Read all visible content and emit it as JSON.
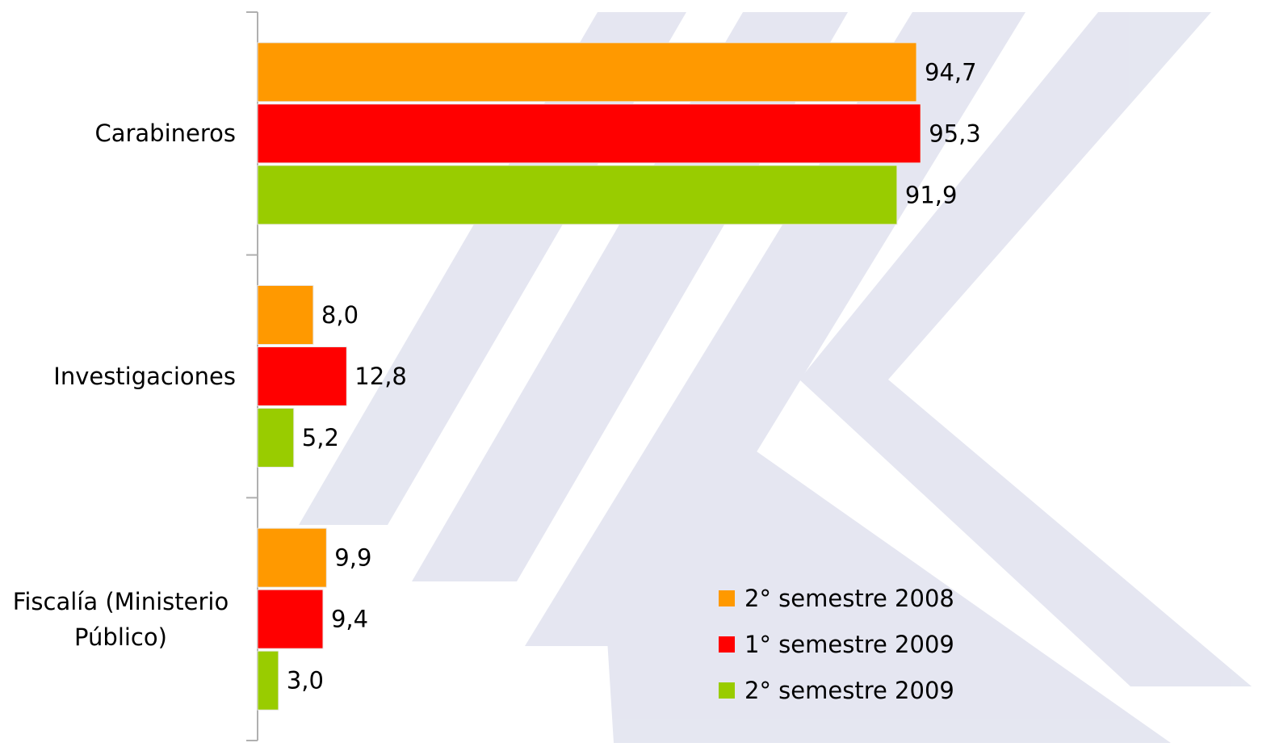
{
  "chart_data": {
    "type": "bar",
    "orientation": "horizontal",
    "categories": [
      "Carabineros",
      "Investigaciones",
      "Fiscalía (Ministerio Público)"
    ],
    "series": [
      {
        "name": "2° semestre 2008",
        "color": "#ff9900",
        "values": [
          94.7,
          8.0,
          9.9
        ],
        "value_labels": [
          "94,7",
          "8,0",
          "9,9"
        ]
      },
      {
        "name": "1° semestre 2009",
        "color": "#ff0000",
        "values": [
          95.3,
          12.8,
          9.4
        ],
        "value_labels": [
          "95,3",
          "12,8",
          "9,4"
        ]
      },
      {
        "name": "2° semestre 2009",
        "color": "#99cc00",
        "values": [
          91.9,
          5.2,
          3.0
        ],
        "value_labels": [
          "91,9",
          "5,2",
          "3,0"
        ]
      }
    ],
    "xlim": [
      0,
      140
    ]
  }
}
